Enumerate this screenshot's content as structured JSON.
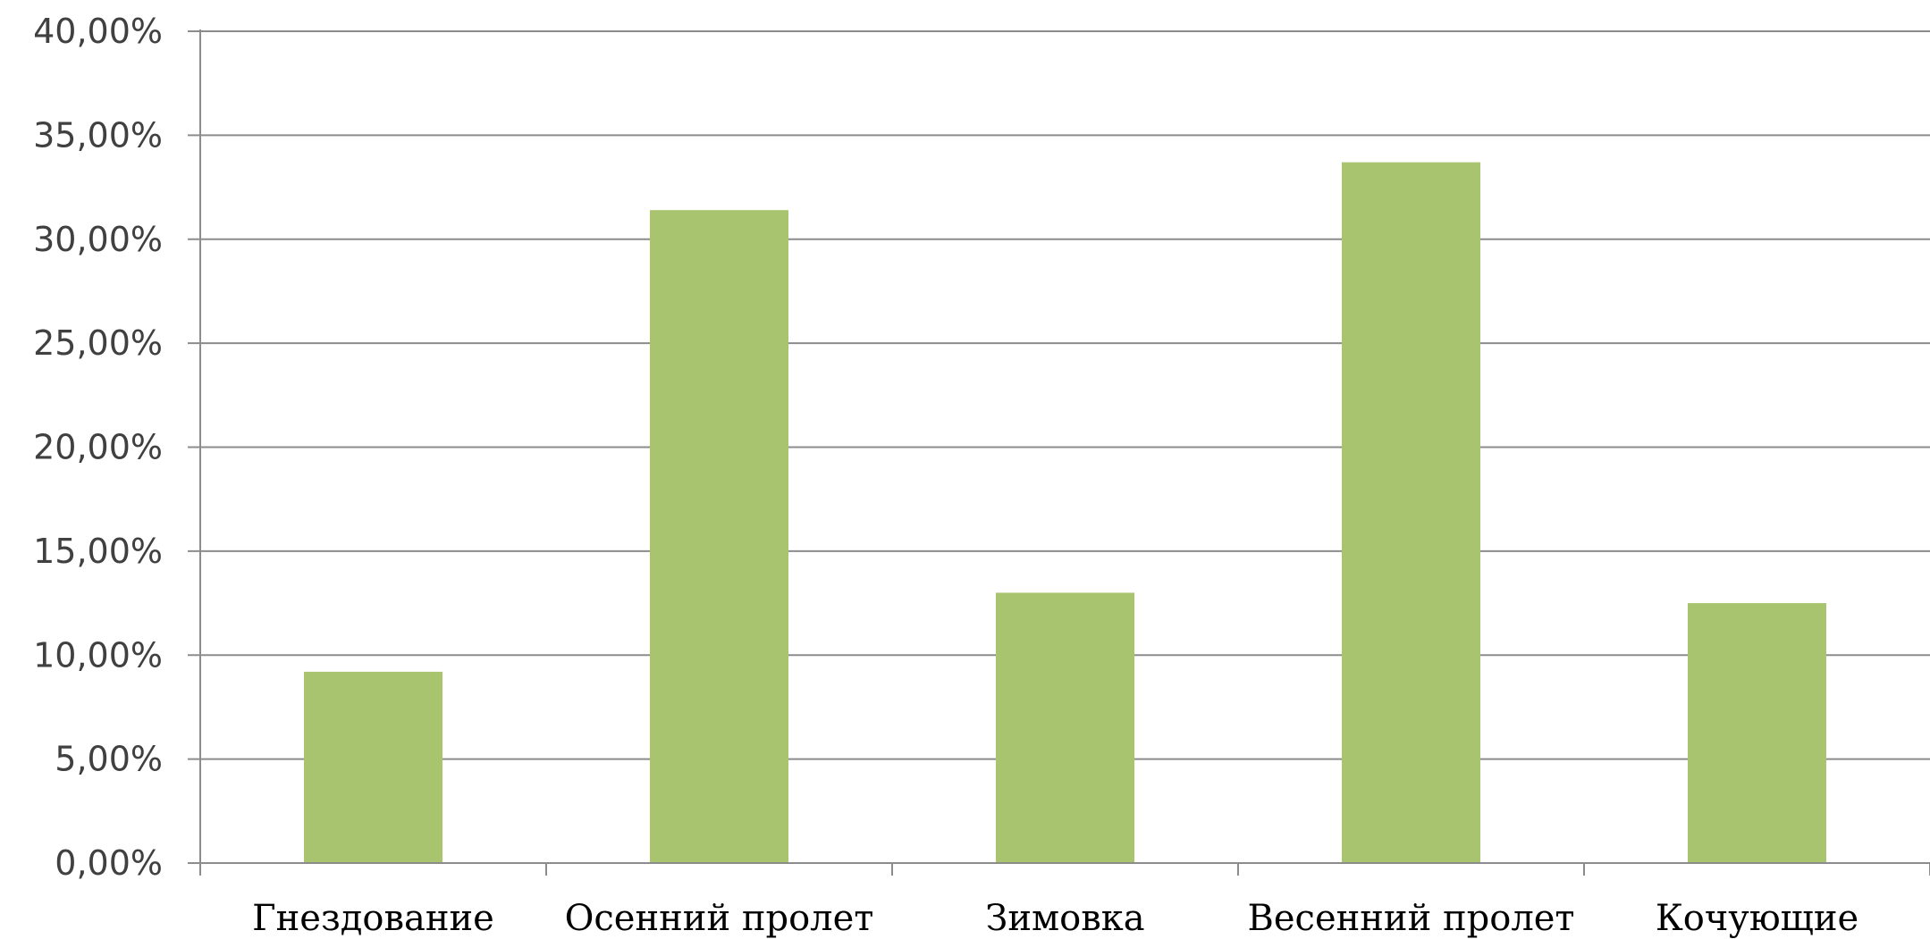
{
  "chart_data": {
    "type": "bar",
    "title": "",
    "xlabel": "",
    "ylabel": "",
    "categories": [
      "Гнездование",
      "Осенний пролет",
      "Зимовка",
      "Весенний пролет",
      "Кочующие"
    ],
    "values": [
      0.092,
      0.314,
      0.13,
      0.337,
      0.125
    ],
    "ylim": [
      0,
      0.4
    ],
    "yticks": [
      0,
      0.05,
      0.1,
      0.15,
      0.2,
      0.25,
      0.3,
      0.35,
      0.4
    ],
    "ytick_labels": [
      "0,00%",
      "5,00%",
      "10,00%",
      "15,00%",
      "20,00%",
      "25,00%",
      "30,00%",
      "35,00%",
      "40,00%"
    ],
    "grid": true,
    "legend": "none",
    "bar_color": "#a9c46f",
    "grid_color": "#8c8c8c"
  }
}
